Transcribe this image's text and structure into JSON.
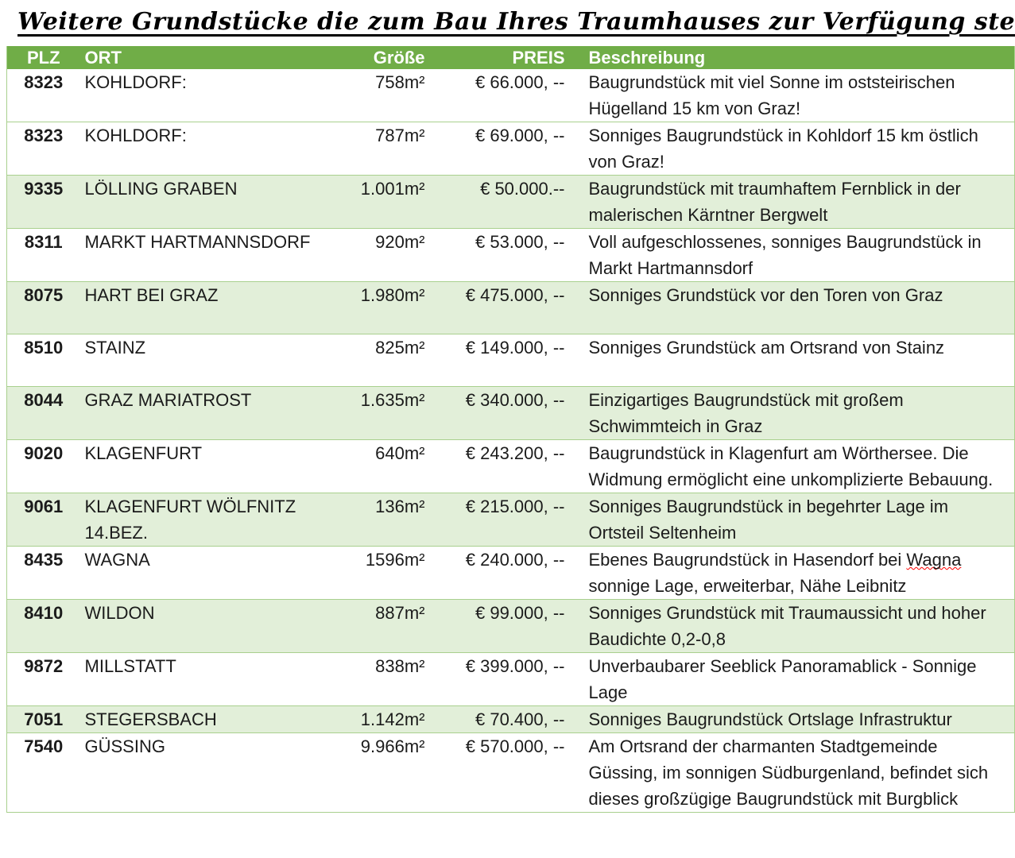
{
  "title": "Weitere Grundstücke die zum Bau Ihres Traumhauses zur Verfügung stehen",
  "colors": {
    "header_bg": "#70AD47",
    "header_text": "#FFFFFF",
    "band_bg": "#E2EFD9",
    "border": "#A9D08E",
    "spellcheck": "#FF0000"
  },
  "table": {
    "columns": [
      "PLZ",
      "ORT",
      "Größe",
      "PREIS",
      "Beschreibung"
    ],
    "rows": [
      {
        "plz": "8323",
        "ort": "KOHLDORF:",
        "groesse": "758m²",
        "preis": "€ 66.000, --",
        "beschreibung": "Baugrundstück mit viel Sonne im oststeirischen Hügelland 15 km von Graz!",
        "shaded": false
      },
      {
        "plz": "8323",
        "ort": "KOHLDORF:",
        "groesse": "787m²",
        "preis": "€ 69.000, --",
        "beschreibung": "Sonniges Baugrundstück in Kohldorf 15 km östlich von Graz!",
        "shaded": false
      },
      {
        "plz": "9335",
        "ort": "LÖLLING GRABEN",
        "groesse": "1.001m²",
        "preis": "€ 50.000.--",
        "beschreibung": "Baugrundstück mit traumhaftem Fernblick in der malerischen Kärntner Bergwelt",
        "shaded": true
      },
      {
        "plz": "8311",
        "ort": "MARKT HARTMANNSDORF",
        "groesse": "920m²",
        "preis": "€ 53.000, --",
        "beschreibung": "Voll aufgeschlossenes, sonniges Baugrundstück in Markt Hartmannsdorf",
        "shaded": false
      },
      {
        "plz": "8075",
        "ort": "HART BEI GRAZ",
        "groesse": "1.980m²",
        "preis": "€ 475.000, --",
        "beschreibung": "Sonniges Grundstück vor den Toren von Graz",
        "shaded": true,
        "min_lines": 2
      },
      {
        "plz": "8510",
        "ort": "STAINZ",
        "groesse": "825m²",
        "preis": "€ 149.000, --",
        "beschreibung": "Sonniges Grundstück am Ortsrand von Stainz",
        "shaded": false,
        "min_lines": 2
      },
      {
        "plz": "8044",
        "ort": "GRAZ MARIATROST",
        "groesse": "1.635m²",
        "preis": "€ 340.000, --",
        "beschreibung": "Einzigartiges Baugrundstück mit großem Schwimmteich in Graz",
        "shaded": true
      },
      {
        "plz": "9020",
        "ort": "KLAGENFURT",
        "groesse": "640m²",
        "preis": "€ 243.200, --",
        "beschreibung": "Baugrundstück in Klagenfurt am Wörthersee. Die Widmung ermöglicht eine unkomplizierte Bebauung.",
        "shaded": false
      },
      {
        "plz": "9061",
        "ort": "KLAGENFURT WÖLFNITZ 14.BEZ.",
        "groesse": "136m²",
        "preis": "€ 215.000, --",
        "beschreibung": "Sonniges Baugrundstück in begehrter Lage im Ortsteil Seltenheim",
        "shaded": true
      },
      {
        "plz": "8435",
        "ort": "WAGNA",
        "groesse": "1596m²",
        "preis": "€ 240.000, --",
        "beschreibung": "Ebenes Baugrundstück in Hasendorf bei Wagna sonnige Lage, erweiterbar, Nähe Leibnitz",
        "shaded": false,
        "spellcheck_word": "Wagna"
      },
      {
        "plz": "8410",
        "ort": "WILDON",
        "groesse": "887m²",
        "preis": "€ 99.000, --",
        "beschreibung": "Sonniges Grundstück mit Traumaussicht und hoher Baudichte 0,2-0,8",
        "shaded": true
      },
      {
        "plz": "9872",
        "ort": "MILLSTATT",
        "groesse": "838m²",
        "preis": "€ 399.000, --",
        "beschreibung": "Unverbaubarer Seeblick Panoramablick - Sonnige Lage",
        "shaded": false
      },
      {
        "plz": "7051",
        "ort": "STEGERSBACH",
        "groesse": "1.142m²",
        "preis": "€ 70.400, --",
        "beschreibung": "Sonniges Baugrundstück Ortslage Infrastruktur",
        "shaded": true
      },
      {
        "plz": "7540",
        "ort": "GÜSSING",
        "groesse": "9.966m²",
        "preis": "€ 570.000, --",
        "beschreibung": "Am Ortsrand der charmanten Stadtgemeinde Güssing, im sonnigen Südburgenland, befindet sich dieses großzügige Baugrundstück mit Burgblick",
        "shaded": false
      }
    ]
  }
}
